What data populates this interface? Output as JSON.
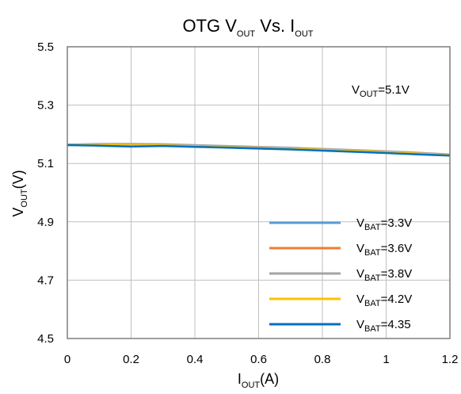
{
  "chart_data": {
    "type": "line",
    "title": {
      "main": "OTG V",
      "sub1": "OUT",
      "mid": " Vs. I",
      "sub2": "OUT"
    },
    "xlabel": {
      "main": "I",
      "sub": "OUT",
      "rest": "(A)"
    },
    "ylabel": {
      "main": "V",
      "sub": "OUT",
      "rest": "(V)"
    },
    "xlim": [
      0,
      1.2
    ],
    "ylim": [
      4.5,
      5.5
    ],
    "xticks": [
      0,
      0.2,
      0.4,
      0.6,
      0.8,
      1,
      1.2
    ],
    "xtick_labels": [
      "0",
      "0.2",
      "0.4",
      "0.6",
      "0.8",
      "1",
      "1.2"
    ],
    "yticks": [
      4.5,
      4.7,
      4.9,
      5.1,
      5.3,
      5.5
    ],
    "ytick_labels": [
      "4.5",
      "4.7",
      "4.9",
      "5.1",
      "5.3",
      "5.5"
    ],
    "grid": true,
    "legend_position": "bottom-right",
    "annotation": {
      "main": "V",
      "sub": "OUT",
      "rest": "=5.1V"
    },
    "series": [
      {
        "name": "VBAT=3.3V",
        "label": {
          "main": "V",
          "sub": "BAT",
          "rest": "=3.3V"
        },
        "color": "#5b9bd5",
        "x": [
          0,
          0.1,
          0.2,
          0.3,
          0.4,
          0.5,
          0.6,
          0.7,
          0.8,
          0.9,
          1.0,
          1.1,
          1.2
        ],
        "y": [
          5.163,
          5.163,
          5.162,
          5.161,
          5.158,
          5.155,
          5.152,
          5.149,
          5.146,
          5.142,
          5.138,
          5.133,
          5.128
        ]
      },
      {
        "name": "VBAT=3.6V",
        "label": {
          "main": "V",
          "sub": "BAT",
          "rest": "=3.6V"
        },
        "color": "#ed7d31",
        "x": [
          0,
          0.1,
          0.2,
          0.3,
          0.4,
          0.5,
          0.6,
          0.7,
          0.8,
          0.9,
          1.0,
          1.1,
          1.2
        ],
        "y": [
          5.164,
          5.165,
          5.165,
          5.164,
          5.161,
          5.158,
          5.155,
          5.152,
          5.148,
          5.144,
          5.14,
          5.135,
          5.13
        ]
      },
      {
        "name": "VBAT=3.8V",
        "label": {
          "main": "V",
          "sub": "BAT",
          "rest": "=3.8V"
        },
        "color": "#a5a5a5",
        "x": [
          0,
          0.1,
          0.2,
          0.3,
          0.4,
          0.5,
          0.6,
          0.7,
          0.8,
          0.9,
          1.0,
          1.1,
          1.2
        ],
        "y": [
          5.165,
          5.167,
          5.167,
          5.166,
          5.163,
          5.16,
          5.157,
          5.154,
          5.15,
          5.146,
          5.142,
          5.137,
          5.131
        ]
      },
      {
        "name": "VBAT=4.2V",
        "label": {
          "main": "V",
          "sub": "BAT",
          "rest": "=4.2V"
        },
        "color": "#ffc000",
        "x": [
          0,
          0.1,
          0.2,
          0.3,
          0.4,
          0.5,
          0.6,
          0.7,
          0.8,
          0.9,
          1.0,
          1.1,
          1.2
        ],
        "y": [
          5.164,
          5.164,
          5.163,
          5.162,
          5.159,
          5.156,
          5.153,
          5.15,
          5.147,
          5.143,
          5.139,
          5.134,
          5.129
        ]
      },
      {
        "name": "VBAT=4.35",
        "label": {
          "main": "V",
          "sub": "BAT",
          "rest": "=4.35"
        },
        "color": "#0070c0",
        "x": [
          0,
          0.1,
          0.2,
          0.3,
          0.4,
          0.5,
          0.6,
          0.7,
          0.8,
          0.9,
          1.0,
          1.1,
          1.2
        ],
        "y": [
          5.163,
          5.161,
          5.158,
          5.16,
          5.157,
          5.154,
          5.151,
          5.148,
          5.144,
          5.14,
          5.136,
          5.131,
          5.127
        ]
      }
    ]
  }
}
